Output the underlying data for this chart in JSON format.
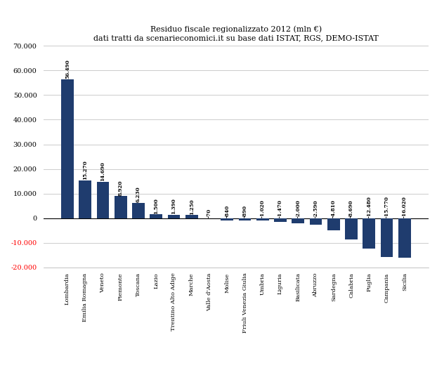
{
  "title_line1": "Residuo fiscale regionalizzato 2012 (mln €)",
  "title_line2": "dati tratti da scenarieconomici.it su base dati ISTAT, RGS, DEMO-ISTAT",
  "categories": [
    "Lombardia",
    "Emilia Romagna",
    "Veneto",
    "Piemonte",
    "Toscana",
    "Lazio",
    "Trentino Alto Adige",
    "Marche",
    "Valle d'Aosta",
    "Molise",
    "Friuli Venezia Giulia",
    "Umbria",
    "Liguria",
    "Basilicata",
    "Abruzzo",
    "Sardegna",
    "Calabria",
    "Puglia",
    "Campania",
    "Sicilia"
  ],
  "values": [
    56490,
    15270,
    14690,
    8920,
    6230,
    1500,
    1390,
    1250,
    -70,
    -840,
    -890,
    -1020,
    -1470,
    -2000,
    -2590,
    -4810,
    -8690,
    -12480,
    -15770,
    -16020
  ],
  "bar_color": "#1F3C6E",
  "negative_tick_color": "#FF0000",
  "ylim": [
    -20000,
    70000
  ],
  "yticks": [
    -20000,
    -10000,
    0,
    10000,
    20000,
    30000,
    40000,
    50000,
    60000,
    70000
  ],
  "ytick_labels": [
    "-20.000",
    "-10.000",
    "0",
    "10.000",
    "20.000",
    "30.000",
    "40.000",
    "50.000",
    "60.000",
    "70.000"
  ],
  "background_color": "#FFFFFF",
  "grid_color": "#CCCCCC"
}
